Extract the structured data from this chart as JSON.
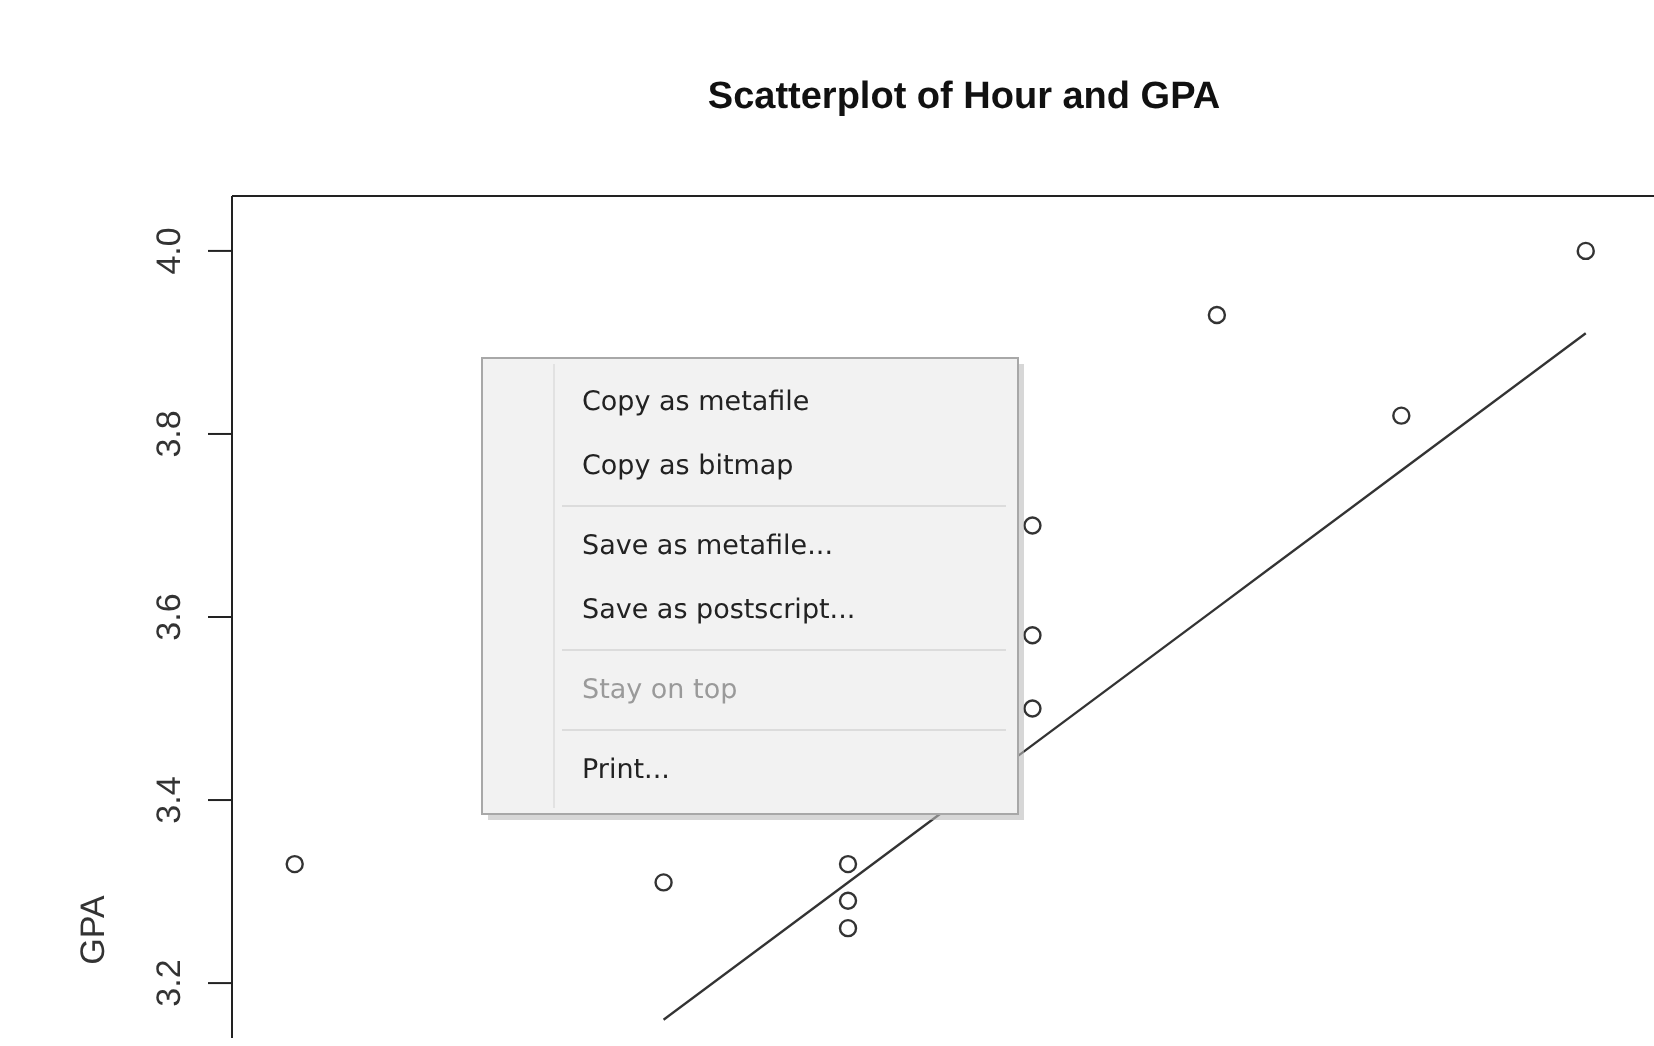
{
  "chart_data": {
    "type": "scatter",
    "title": "Scatterplot of Hour and GPA",
    "ylabel": "GPA",
    "categories": [
      null,
      null,
      null,
      null,
      null,
      null,
      null,
      null
    ],
    "series": [
      {
        "color": "#333333",
        "values": [
          3.33,
          null,
          3.31,
          3.33,
          3.7,
          3.93,
          3.82,
          4.0
        ]
      },
      {
        "color": "#333333",
        "values": [
          null,
          null,
          null,
          3.29,
          3.58,
          null,
          null,
          null
        ]
      },
      {
        "color": "#333333",
        "values": [
          null,
          null,
          null,
          3.26,
          3.5,
          null,
          null,
          null
        ]
      },
      {
        "type": "line",
        "marker": "none",
        "color": "#333333",
        "values": [
          null,
          null,
          3.16,
          3.31,
          3.46,
          3.61,
          3.76,
          3.91
        ]
      }
    ],
    "ylim": [
      3.14,
      4.06
    ],
    "yticks": [
      3.2,
      3.4,
      3.6,
      3.8,
      {
        "value": 4.0,
        "label": "4.0"
      }
    ],
    "tick_labels": "y",
    "marker": "circle",
    "line_style": "solid",
    "annotations": [
      "Copy as metafile",
      "Copy as bitmap",
      "Save as metafile...",
      "Save as postscript...",
      "Stay on top",
      "Print..."
    ]
  }
}
